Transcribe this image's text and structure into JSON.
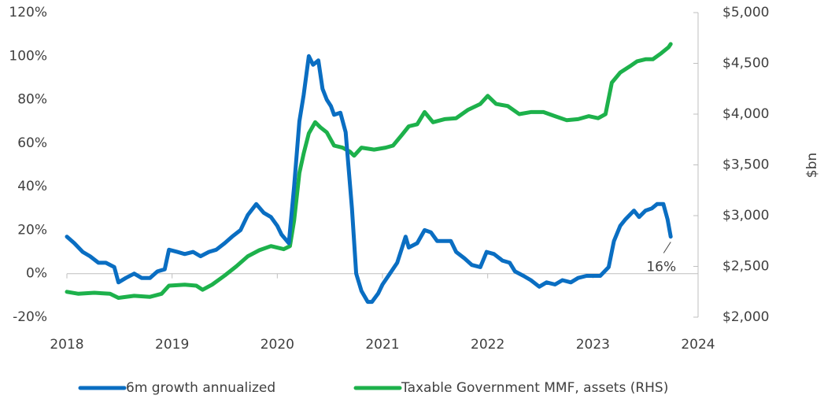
{
  "chart_data": {
    "type": "line",
    "y2label": "$bn",
    "xlim": [
      2018,
      2024
    ],
    "xticks": [
      2018,
      2019,
      2020,
      2021,
      2022,
      2023,
      2024
    ],
    "ylim": [
      -20,
      120
    ],
    "yticks": [
      {
        "value": -20,
        "label": "-20%"
      },
      {
        "value": 0,
        "label": "0%"
      },
      {
        "value": 20,
        "label": "20%"
      },
      {
        "value": 40,
        "label": "40%"
      },
      {
        "value": 60,
        "label": "60%"
      },
      {
        "value": 80,
        "label": "80%"
      },
      {
        "value": 100,
        "label": "100%"
      },
      {
        "value": 120,
        "label": "120%"
      }
    ],
    "y2lim": [
      2000,
      5000
    ],
    "y2ticks": [
      {
        "value": 2000,
        "label": "$2,000"
      },
      {
        "value": 2500,
        "label": "$2,500"
      },
      {
        "value": 3000,
        "label": "$3,000"
      },
      {
        "value": 3500,
        "label": "$3,500"
      },
      {
        "value": 4000,
        "label": "$4,000"
      },
      {
        "value": 4500,
        "label": "$4,500"
      },
      {
        "value": 5000,
        "label": "$5,000"
      }
    ],
    "legend": "bottom",
    "annotations": [
      {
        "text": "16%",
        "x": 2023.74,
        "y": 16
      }
    ],
    "series": [
      {
        "name": "6m growth annualized",
        "color": "#0a6ec2",
        "x": [
          2018.0,
          2018.07,
          2018.15,
          2018.22,
          2018.3,
          2018.37,
          2018.45,
          2018.49,
          2018.56,
          2018.64,
          2018.71,
          2018.79,
          2018.86,
          2018.93,
          2018.97,
          2019.05,
          2019.12,
          2019.2,
          2019.27,
          2019.35,
          2019.42,
          2019.5,
          2019.57,
          2019.65,
          2019.72,
          2019.8,
          2019.87,
          2019.94,
          2020.0,
          2020.04,
          2020.11,
          2020.16,
          2020.21,
          2020.25,
          2020.3,
          2020.34,
          2020.39,
          2020.43,
          2020.47,
          2020.51,
          2020.54,
          2020.6,
          2020.65,
          2020.71,
          2020.75,
          2020.8,
          2020.86,
          2020.9,
          2020.96,
          2021.0,
          2021.07,
          2021.14,
          2021.22,
          2021.25,
          2021.33,
          2021.4,
          2021.46,
          2021.52,
          2021.6,
          2021.65,
          2021.7,
          2021.78,
          2021.85,
          2021.93,
          2021.99,
          2022.06,
          2022.14,
          2022.21,
          2022.26,
          2022.34,
          2022.41,
          2022.49,
          2022.56,
          2022.64,
          2022.71,
          2022.79,
          2022.86,
          2022.94,
          2023.0,
          2023.07,
          2023.15,
          2023.2,
          2023.26,
          2023.31,
          2023.39,
          2023.44,
          2023.5,
          2023.56,
          2023.61,
          2023.67,
          2023.71,
          2023.74
        ],
        "values": [
          17,
          14,
          10,
          8,
          5,
          5,
          3,
          -4,
          -2,
          0,
          -2,
          -2,
          1,
          2,
          11,
          10,
          9,
          10,
          8,
          10,
          11,
          14,
          17,
          20,
          27,
          32,
          28,
          26,
          22,
          18,
          14,
          40,
          70,
          82,
          100,
          96,
          98,
          85,
          80,
          77,
          73,
          74,
          65,
          30,
          0,
          -8,
          -13,
          -13,
          -9,
          -5,
          0,
          5,
          17,
          12,
          14,
          20,
          19,
          15,
          15,
          15,
          10,
          7,
          4,
          3,
          10,
          9,
          6,
          5,
          1,
          -1,
          -3,
          -6,
          -4,
          -5,
          -3,
          -4,
          -2,
          -1,
          -1,
          -1,
          3,
          15,
          22,
          25,
          29,
          26,
          29,
          30,
          32,
          32,
          25,
          17
        ]
      },
      {
        "name": "Taxable Government MMF, assets (RHS)",
        "color": "#1db14b",
        "axis": "y2",
        "x": [
          2018.0,
          2018.11,
          2018.26,
          2018.41,
          2018.49,
          2018.64,
          2018.79,
          2018.9,
          2018.97,
          2019.12,
          2019.23,
          2019.29,
          2019.38,
          2019.5,
          2019.61,
          2019.72,
          2019.83,
          2019.94,
          2020.06,
          2020.12,
          2020.16,
          2020.21,
          2020.25,
          2020.3,
          2020.36,
          2020.41,
          2020.47,
          2020.54,
          2020.62,
          2020.69,
          2020.73,
          2020.8,
          2020.92,
          2021.03,
          2021.1,
          2021.18,
          2021.25,
          2021.33,
          2021.4,
          2021.48,
          2021.59,
          2021.7,
          2021.81,
          2021.93,
          2022.0,
          2022.08,
          2022.19,
          2022.3,
          2022.41,
          2022.53,
          2022.64,
          2022.75,
          2022.86,
          2022.96,
          2023.05,
          2023.12,
          2023.18,
          2023.26,
          2023.35,
          2023.42,
          2023.5,
          2023.57,
          2023.65,
          2023.72,
          2023.74
        ],
        "values": [
          2250,
          2230,
          2240,
          2230,
          2190,
          2210,
          2200,
          2230,
          2310,
          2320,
          2310,
          2270,
          2320,
          2410,
          2500,
          2600,
          2660,
          2700,
          2670,
          2700,
          2950,
          3420,
          3610,
          3810,
          3920,
          3870,
          3820,
          3690,
          3670,
          3630,
          3590,
          3670,
          3650,
          3670,
          3690,
          3790,
          3880,
          3900,
          4020,
          3920,
          3950,
          3960,
          4040,
          4100,
          4180,
          4100,
          4080,
          4000,
          4020,
          4020,
          3980,
          3940,
          3950,
          3980,
          3960,
          4000,
          4310,
          4410,
          4470,
          4520,
          4540,
          4540,
          4600,
          4660,
          4690
        ]
      }
    ]
  }
}
